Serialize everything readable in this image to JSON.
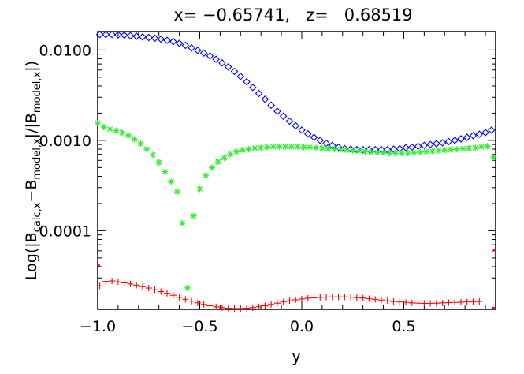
{
  "chart_data": {
    "type": "scatter",
    "title": "x= −0.65741,   z=   0.68519",
    "xlabel": "y",
    "ylabel": {
      "p1": "Log(|B",
      "s1": "calc,x",
      "p2": "−B",
      "s2": "model,x",
      "p3": "|/|B",
      "s3": "model,x",
      "p4": "|)"
    },
    "y_scale": "log",
    "xlim": [
      -1.0,
      0.95
    ],
    "ylim": [
      1.35e-05,
      0.016
    ],
    "x_ticks": [
      -1.0,
      -0.5,
      0.0,
      0.5
    ],
    "x_tick_labels": [
      "−1.0",
      "−0.5",
      "0.0",
      "0.5"
    ],
    "y_ticks": [
      0.0001,
      0.001,
      0.01
    ],
    "y_tick_labels": [
      "0.0001",
      "0.0010",
      "0.0100"
    ],
    "series": [
      {
        "marker": "diamond",
        "color": "#0000ff",
        "points": [
          [
            -0.99,
            0.01485
          ],
          [
            -0.96,
            0.01485
          ],
          [
            -0.93,
            0.01485
          ],
          [
            -0.9,
            0.01475
          ],
          [
            -0.87,
            0.0146
          ],
          [
            -0.84,
            0.0144
          ],
          [
            -0.81,
            0.0142
          ],
          [
            -0.78,
            0.01395
          ],
          [
            -0.75,
            0.01375
          ],
          [
            -0.72,
            0.0135
          ],
          [
            -0.69,
            0.0132
          ],
          [
            -0.66,
            0.0128
          ],
          [
            -0.63,
            0.0124
          ],
          [
            -0.6,
            0.01185
          ],
          [
            -0.57,
            0.01125
          ],
          [
            -0.54,
            0.01055
          ],
          [
            -0.51,
            0.0099
          ],
          [
            -0.48,
            0.00925
          ],
          [
            -0.45,
            0.0086
          ],
          [
            -0.42,
            0.0079
          ],
          [
            -0.39,
            0.0072
          ],
          [
            -0.36,
            0.0065
          ],
          [
            -0.33,
            0.0058
          ],
          [
            -0.3,
            0.0051
          ],
          [
            -0.27,
            0.00445
          ],
          [
            -0.24,
            0.00385
          ],
          [
            -0.21,
            0.0033
          ],
          [
            -0.18,
            0.00285
          ],
          [
            -0.15,
            0.00245
          ],
          [
            -0.12,
            0.0021
          ],
          [
            -0.09,
            0.00185
          ],
          [
            -0.06,
            0.00163
          ],
          [
            -0.03,
            0.00145
          ],
          [
            0.0,
            0.0013
          ],
          [
            0.03,
            0.00118
          ],
          [
            0.06,
            0.00108
          ],
          [
            0.09,
            0.001
          ],
          [
            0.12,
            0.00093
          ],
          [
            0.15,
            0.00088
          ],
          [
            0.18,
            0.00084
          ],
          [
            0.21,
            0.00081
          ],
          [
            0.24,
            0.0008
          ],
          [
            0.27,
            0.00079
          ],
          [
            0.3,
            0.00079
          ],
          [
            0.33,
            0.00079
          ],
          [
            0.36,
            0.00079
          ],
          [
            0.39,
            0.00079
          ],
          [
            0.42,
            0.00079
          ],
          [
            0.45,
            0.0008
          ],
          [
            0.48,
            0.00081
          ],
          [
            0.51,
            0.00083
          ],
          [
            0.54,
            0.00084
          ],
          [
            0.57,
            0.00086
          ],
          [
            0.6,
            0.00088
          ],
          [
            0.63,
            0.0009
          ],
          [
            0.66,
            0.00092
          ],
          [
            0.69,
            0.00094
          ],
          [
            0.72,
            0.00097
          ],
          [
            0.75,
            0.001
          ],
          [
            0.78,
            0.00104
          ],
          [
            0.81,
            0.00108
          ],
          [
            0.84,
            0.00113
          ],
          [
            0.87,
            0.00117
          ],
          [
            0.9,
            0.00122
          ],
          [
            0.93,
            0.0013
          ]
        ]
      },
      {
        "marker": "asterisk",
        "color": "#33ee33",
        "points": [
          [
            -1.0,
            0.00155
          ],
          [
            -0.97,
            0.0014
          ],
          [
            -0.94,
            0.00133
          ],
          [
            -0.91,
            0.00128
          ],
          [
            -0.88,
            0.00122
          ],
          [
            -0.85,
            0.00113
          ],
          [
            -0.82,
            0.00103
          ],
          [
            -0.79,
            0.00092
          ],
          [
            -0.76,
            0.0008
          ],
          [
            -0.73,
            0.00069
          ],
          [
            -0.7,
            0.00057
          ],
          [
            -0.67,
            0.00045
          ],
          [
            -0.64,
            0.00035
          ],
          [
            -0.61,
            0.00027
          ],
          [
            -0.585,
            0.000121
          ],
          [
            -0.56,
            2.33e-05
          ],
          [
            -0.53,
            0.000146
          ],
          [
            -0.5,
            0.00029
          ],
          [
            -0.47,
            0.00041
          ],
          [
            -0.44,
            0.0005
          ],
          [
            -0.41,
            0.00058
          ],
          [
            -0.38,
            0.00064
          ],
          [
            -0.35,
            0.0007
          ],
          [
            -0.32,
            0.00075
          ],
          [
            -0.29,
            0.00078
          ],
          [
            -0.26,
            0.0008
          ],
          [
            -0.23,
            0.00082
          ],
          [
            -0.2,
            0.00083
          ],
          [
            -0.17,
            0.00084
          ],
          [
            -0.14,
            0.00085
          ],
          [
            -0.11,
            0.00085
          ],
          [
            -0.08,
            0.00085
          ],
          [
            -0.05,
            0.00085
          ],
          [
            -0.02,
            0.00085
          ],
          [
            0.01,
            0.00084
          ],
          [
            0.04,
            0.00084
          ],
          [
            0.07,
            0.00083
          ],
          [
            0.1,
            0.00082
          ],
          [
            0.13,
            0.00081
          ],
          [
            0.16,
            0.0008
          ],
          [
            0.19,
            0.00079
          ],
          [
            0.22,
            0.00078
          ],
          [
            0.25,
            0.00077
          ],
          [
            0.28,
            0.00076
          ],
          [
            0.31,
            0.00075
          ],
          [
            0.34,
            0.00074
          ],
          [
            0.37,
            0.00073
          ],
          [
            0.4,
            0.00073
          ],
          [
            0.43,
            0.00072
          ],
          [
            0.46,
            0.00072
          ],
          [
            0.49,
            0.00072
          ],
          [
            0.52,
            0.00072
          ],
          [
            0.55,
            0.00073
          ],
          [
            0.58,
            0.00074
          ],
          [
            0.61,
            0.00075
          ],
          [
            0.64,
            0.00076
          ],
          [
            0.67,
            0.00077
          ],
          [
            0.7,
            0.00078
          ],
          [
            0.73,
            0.00079
          ],
          [
            0.76,
            0.0008
          ],
          [
            0.79,
            0.00081
          ],
          [
            0.82,
            0.00082
          ],
          [
            0.85,
            0.00083
          ],
          [
            0.88,
            0.00085
          ],
          [
            0.91,
            0.00086
          ],
          [
            0.94,
            0.00065
          ]
        ]
      },
      {
        "marker": "plus",
        "color": "#ff0000",
        "points": [
          [
            -0.99,
            2.45e-05
          ],
          [
            -0.96,
            2.75e-05
          ],
          [
            -0.93,
            2.78e-05
          ],
          [
            -0.9,
            2.72e-05
          ],
          [
            -0.87,
            2.65e-05
          ],
          [
            -0.84,
            2.58e-05
          ],
          [
            -0.81,
            2.5e-05
          ],
          [
            -0.78,
            2.41e-05
          ],
          [
            -0.75,
            2.32e-05
          ],
          [
            -0.72,
            2.22e-05
          ],
          [
            -0.69,
            2.12e-05
          ],
          [
            -0.66,
            2.03e-05
          ],
          [
            -0.63,
            1.93e-05
          ],
          [
            -0.6,
            1.83e-05
          ],
          [
            -0.57,
            1.74e-05
          ],
          [
            -0.54,
            1.66e-05
          ],
          [
            -0.51,
            1.59e-05
          ],
          [
            -0.48,
            1.53e-05
          ],
          [
            -0.45,
            1.48e-05
          ],
          [
            -0.42,
            1.44e-05
          ],
          [
            -0.39,
            1.41e-05
          ],
          [
            -0.36,
            1.39e-05
          ],
          [
            -0.33,
            1.38e-05
          ],
          [
            -0.3,
            1.38e-05
          ],
          [
            -0.27,
            1.39e-05
          ],
          [
            -0.24,
            1.41e-05
          ],
          [
            -0.21,
            1.44e-05
          ],
          [
            -0.18,
            1.48e-05
          ],
          [
            -0.15,
            1.53e-05
          ],
          [
            -0.12,
            1.58e-05
          ],
          [
            -0.09,
            1.63e-05
          ],
          [
            -0.06,
            1.68e-05
          ],
          [
            -0.03,
            1.72e-05
          ],
          [
            0.0,
            1.76e-05
          ],
          [
            0.03,
            1.79e-05
          ],
          [
            0.06,
            1.81e-05
          ],
          [
            0.09,
            1.83e-05
          ],
          [
            0.12,
            1.84e-05
          ],
          [
            0.15,
            1.85e-05
          ],
          [
            0.18,
            1.85e-05
          ],
          [
            0.21,
            1.85e-05
          ],
          [
            0.24,
            1.84e-05
          ],
          [
            0.27,
            1.82e-05
          ],
          [
            0.3,
            1.8e-05
          ],
          [
            0.33,
            1.77e-05
          ],
          [
            0.36,
            1.74e-05
          ],
          [
            0.39,
            1.71e-05
          ],
          [
            0.42,
            1.68e-05
          ],
          [
            0.45,
            1.65e-05
          ],
          [
            0.48,
            1.63e-05
          ],
          [
            0.51,
            1.61e-05
          ],
          [
            0.54,
            1.59e-05
          ],
          [
            0.57,
            1.58e-05
          ],
          [
            0.6,
            1.57e-05
          ],
          [
            0.63,
            1.57e-05
          ],
          [
            0.66,
            1.58e-05
          ],
          [
            0.69,
            1.59e-05
          ],
          [
            0.72,
            1.6e-05
          ],
          [
            0.75,
            1.61e-05
          ],
          [
            0.78,
            1.62e-05
          ],
          [
            0.81,
            1.63e-05
          ],
          [
            0.84,
            1.64e-05
          ],
          [
            0.87,
            1.65e-05
          ]
        ]
      },
      {
        "marker": "dot",
        "color": "#ff0000",
        "points": [
          [
            -1.0,
            4.1e-05
          ],
          [
            0.95,
            6.1e-05
          ],
          [
            0.94,
            1.4e-05
          ]
        ]
      }
    ]
  }
}
